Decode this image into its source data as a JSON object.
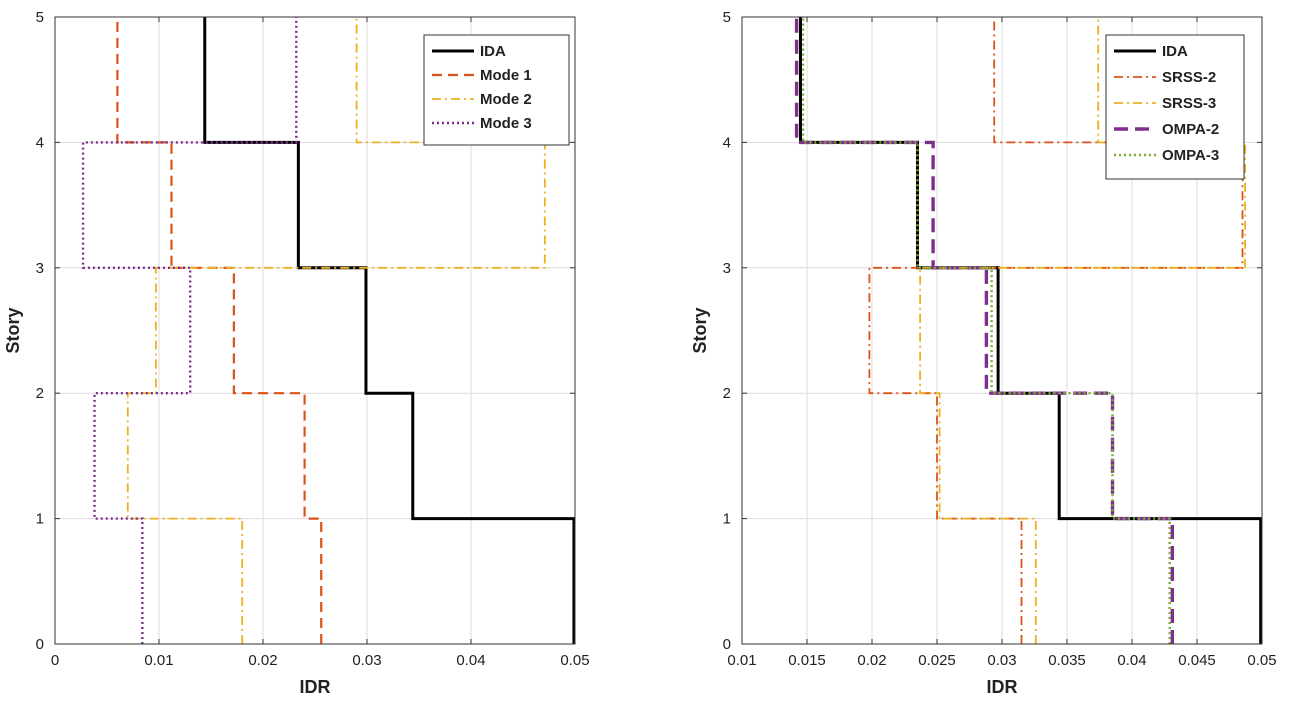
{
  "chart_data": [
    {
      "type": "line",
      "title": "",
      "xlabel": "IDR",
      "ylabel": "Story",
      "xlim": [
        0,
        0.05
      ],
      "ylim": [
        0,
        5
      ],
      "xticks": [
        "0",
        "0.01",
        "0.02",
        "0.03",
        "0.04",
        "0.05"
      ],
      "yticks": [
        "0",
        "1",
        "2",
        "3",
        "4",
        "5"
      ],
      "grid": true,
      "legend_position": "top-right",
      "series": [
        {
          "name": "IDA",
          "color": "#000000",
          "style": "solid",
          "values": [
            0.0499,
            0.0344,
            0.0299,
            0.0234,
            0.0144
          ]
        },
        {
          "name": "Mode 1",
          "color": "#d95319",
          "style": "dashed",
          "values": [
            0.0256,
            0.024,
            0.0172,
            0.0112,
            0.006
          ]
        },
        {
          "name": "Mode 2",
          "color": "#edb120",
          "style": "dashdot",
          "values": [
            0.018,
            0.007,
            0.0097,
            0.0471,
            0.029
          ]
        },
        {
          "name": "Mode 3",
          "color": "#7e2f8e",
          "style": "dotted",
          "values": [
            0.0084,
            0.0038,
            0.013,
            0.0027,
            0.0232
          ]
        }
      ]
    },
    {
      "type": "line",
      "title": "",
      "xlabel": "IDR",
      "ylabel": "Story",
      "xlim": [
        0.01,
        0.05
      ],
      "ylim": [
        0,
        5
      ],
      "xticks": [
        "0.01",
        "0.015",
        "0.02",
        "0.025",
        "0.03",
        "0.035",
        "0.04",
        "0.045",
        "0.05"
      ],
      "yticks": [
        "0",
        "1",
        "2",
        "3",
        "4",
        "5"
      ],
      "grid": true,
      "legend_position": "top-right",
      "series": [
        {
          "name": "IDA",
          "color": "#000000",
          "style": "solid",
          "values": [
            0.0499,
            0.0344,
            0.0297,
            0.0235,
            0.0145
          ]
        },
        {
          "name": "SRSS-2",
          "color": "#d95319",
          "style": "dashdot",
          "values": [
            0.0315,
            0.025,
            0.0198,
            0.0485,
            0.0294
          ]
        },
        {
          "name": "SRSS-3",
          "color": "#edb120",
          "style": "dashdot",
          "values": [
            0.0326,
            0.0252,
            0.0237,
            0.0487,
            0.0374
          ]
        },
        {
          "name": "OMPA-2",
          "color": "#7e2f8e",
          "style": "longdash",
          "values": [
            0.0431,
            0.0385,
            0.0288,
            0.0247,
            0.0142
          ]
        },
        {
          "name": "OMPA-3",
          "color": "#77ac30",
          "style": "dotted",
          "values": [
            0.0429,
            0.0385,
            0.0292,
            0.0235,
            0.0147
          ]
        }
      ]
    }
  ]
}
